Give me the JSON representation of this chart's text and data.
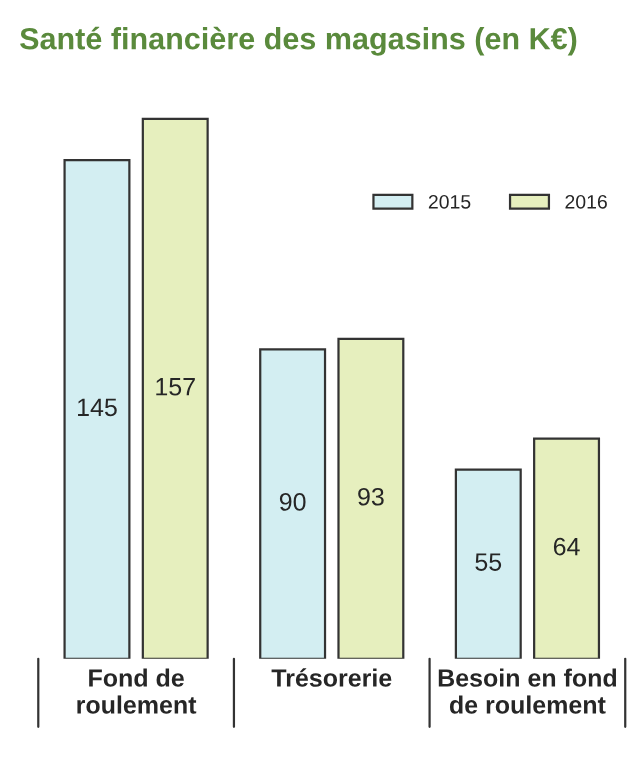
{
  "chart_data": {
    "type": "bar",
    "title": "Santé financière des magasins (en K€)",
    "categories": [
      "Fond de\nroulement",
      "Trésorerie",
      "Besoin en fond\nde roulement"
    ],
    "series": [
      {
        "name": "2015",
        "color": "#d3eef2",
        "values": [
          145,
          90,
          55
        ]
      },
      {
        "name": "2016",
        "color": "#e6efbe",
        "values": [
          157,
          93,
          64
        ]
      }
    ],
    "data_labels": true,
    "legend": "top right",
    "grid": false
  }
}
